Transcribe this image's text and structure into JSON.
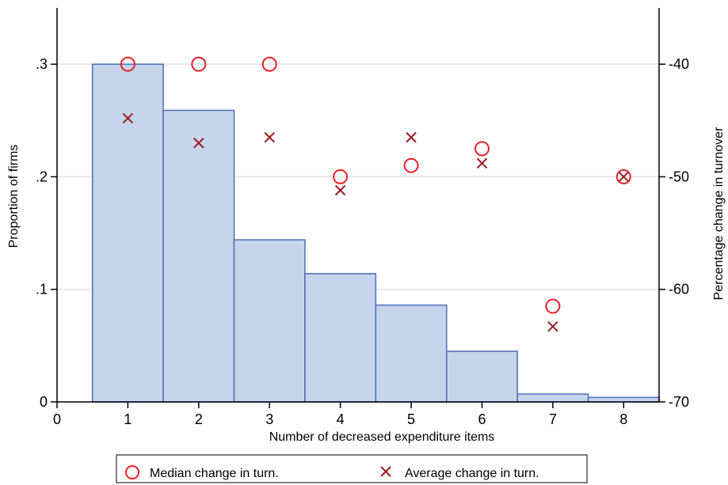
{
  "chart_data": {
    "type": "bar",
    "xlabel": "Number of decreased expenditure items",
    "ylabel_left": "Proportion of firms",
    "ylabel_right": "Percentage change in turnover",
    "x_ticks": [
      "0",
      "1",
      "2",
      "3",
      "4",
      "5",
      "6",
      "7",
      "8"
    ],
    "y_left_ticks": [
      "0",
      ".1",
      ".2",
      ".3"
    ],
    "y_right_ticks": [
      "-70",
      "-60",
      "-50",
      "-40"
    ],
    "xlim": [
      0,
      8.5
    ],
    "ylim_left": [
      0,
      0.35
    ],
    "ylim_right": [
      -70,
      -35
    ],
    "grid": true,
    "legend_position": "bottom",
    "colors": {
      "bar_fill": "#c6d4ec",
      "bar_stroke": "#4a6fb5",
      "median_marker": "#e8202a",
      "average_marker": "#9b1c22",
      "grid": "#e3e3e3"
    },
    "histogram": {
      "name": "",
      "x": [
        1,
        2,
        3,
        4,
        5,
        6,
        7,
        8
      ],
      "values": [
        0.3,
        0.259,
        0.144,
        0.114,
        0.086,
        0.045,
        0.007,
        0.004
      ]
    },
    "series": [
      {
        "name": "Median change in turn.",
        "marker": "circle",
        "axis": "right",
        "x": [
          1,
          2,
          3,
          4,
          5,
          6,
          7,
          8
        ],
        "values": [
          -40.0,
          -40.0,
          -40.0,
          -50.0,
          -49.0,
          -47.5,
          -61.5,
          -50.0
        ]
      },
      {
        "name": "Average change in turn.",
        "marker": "x",
        "axis": "right",
        "x": [
          1,
          2,
          3,
          4,
          5,
          6,
          7,
          8
        ],
        "values": [
          -44.8,
          -47.0,
          -46.5,
          -51.2,
          -46.5,
          -48.8,
          -63.3,
          -50.0
        ]
      }
    ]
  }
}
